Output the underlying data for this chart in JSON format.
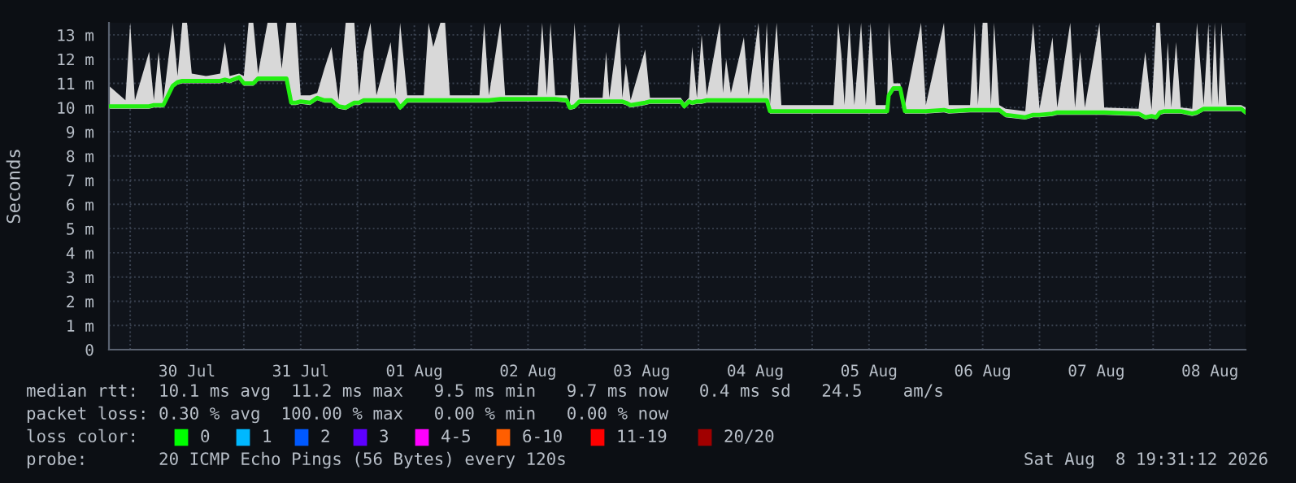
{
  "chart_data": {
    "type": "line",
    "ylabel": "Seconds",
    "xlim": [
      "2026-07-29T19:31",
      "2026-08-08T19:31"
    ],
    "xticks": [
      {
        "value": "2026-07-30T00:00",
        "label": null
      },
      {
        "value": "2026-07-30T12:00",
        "label": "30 Jul"
      },
      {
        "value": "2026-07-31T00:00",
        "label": null
      },
      {
        "value": "2026-07-31T12:00",
        "label": "31 Jul"
      },
      {
        "value": "2026-08-01T00:00",
        "label": null
      },
      {
        "value": "2026-08-01T12:00",
        "label": "01 Aug"
      },
      {
        "value": "2026-08-02T00:00",
        "label": null
      },
      {
        "value": "2026-08-02T12:00",
        "label": "02 Aug"
      },
      {
        "value": "2026-08-03T00:00",
        "label": null
      },
      {
        "value": "2026-08-03T12:00",
        "label": "03 Aug"
      },
      {
        "value": "2026-08-04T00:00",
        "label": null
      },
      {
        "value": "2026-08-04T12:00",
        "label": "04 Aug"
      },
      {
        "value": "2026-08-05T00:00",
        "label": null
      },
      {
        "value": "2026-08-05T12:00",
        "label": "05 Aug"
      },
      {
        "value": "2026-08-06T00:00",
        "label": null
      },
      {
        "value": "2026-08-06T12:00",
        "label": "06 Aug"
      },
      {
        "value": "2026-08-07T00:00",
        "label": null
      },
      {
        "value": "2026-08-07T12:00",
        "label": "07 Aug"
      },
      {
        "value": "2026-08-08T00:00",
        "label": null
      },
      {
        "value": "2026-08-08T12:00",
        "label": "08 Aug"
      }
    ],
    "ylim": [
      0,
      13.5
    ],
    "yticks": [
      0,
      {
        "value": 1,
        "label": "1 m"
      },
      {
        "value": 2,
        "label": "2 m"
      },
      {
        "value": 3,
        "label": "3 m"
      },
      {
        "value": 4,
        "label": "4 m"
      },
      {
        "value": 5,
        "label": "5 m"
      },
      {
        "value": 6,
        "label": "6 m"
      },
      {
        "value": 7,
        "label": "7 m"
      },
      {
        "value": 8,
        "label": "8 m"
      },
      {
        "value": 9,
        "label": "9 m"
      },
      {
        "value": 10,
        "label": "10 m"
      },
      {
        "value": 11,
        "label": "11 m"
      },
      {
        "value": 12,
        "label": "12 m"
      },
      {
        "value": 13,
        "label": "13 m"
      }
    ],
    "grid": true,
    "legend": false,
    "line_style": "solid",
    "marker": "none",
    "series": [
      {
        "color": "#22ee11",
        "x": [
          "2026-07-29T19:31",
          "2026-07-29T23:00",
          "2026-07-30T00:00",
          "2026-07-30T01:00",
          "2026-07-30T04:00",
          "2026-07-30T05:00",
          "2026-07-30T06:00",
          "2026-07-30T07:00",
          "2026-07-30T09:00",
          "2026-07-30T10:00",
          "2026-07-30T11:00",
          "2026-07-30T12:00",
          "2026-07-30T13:00",
          "2026-07-30T16:00",
          "2026-07-30T19:00",
          "2026-07-30T20:00",
          "2026-07-30T21:00",
          "2026-07-30T23:00",
          "2026-07-31T00:00",
          "2026-07-31T01:00",
          "2026-07-31T02:00",
          "2026-07-31T03:00",
          "2026-07-31T05:00",
          "2026-07-31T06:00",
          "2026-07-31T07:00",
          "2026-07-31T08:00",
          "2026-07-31T09:00",
          "2026-07-31T10:00",
          "2026-07-31T11:00",
          "2026-07-31T12:00",
          "2026-07-31T14:00",
          "2026-07-31T15:30",
          "2026-07-31T17:00",
          "2026-07-31T18:30",
          "2026-07-31T20:00",
          "2026-07-31T21:30",
          "2026-07-31T23:20",
          "2026-08-01T00:20",
          "2026-08-01T01:20",
          "2026-08-01T02:45",
          "2026-08-01T04:00",
          "2026-08-01T07:00",
          "2026-08-01T08:00",
          "2026-08-01T09:00",
          "2026-08-01T10:30",
          "2026-08-01T14:00",
          "2026-08-01T15:00",
          "2026-08-01T16:00",
          "2026-08-01T17:30",
          "2026-08-01T18:30",
          "2026-08-01T19:30",
          "2026-08-02T01:45",
          "2026-08-02T02:45",
          "2026-08-02T03:45",
          "2026-08-02T06:10",
          "2026-08-02T07:10",
          "2026-08-02T14:00",
          "2026-08-02T15:00",
          "2026-08-02T16:00",
          "2026-08-02T16:45",
          "2026-08-02T17:45",
          "2026-08-02T20:10",
          "2026-08-02T20:50",
          "2026-08-02T21:50",
          "2026-08-02T22:50",
          "2026-08-03T03:45",
          "2026-08-03T04:30",
          "2026-08-03T05:10",
          "2026-08-03T07:15",
          "2026-08-03T07:55",
          "2026-08-03T08:40",
          "2026-08-03T09:40",
          "2026-08-03T12:45",
          "2026-08-03T13:45",
          "2026-08-03T20:15",
          "2026-08-03T21:00",
          "2026-08-03T22:00",
          "2026-08-03T22:40",
          "2026-08-03T23:40",
          "2026-08-04T00:40",
          "2026-08-04T01:45",
          "2026-08-04T04:30",
          "2026-08-04T05:10",
          "2026-08-04T05:50",
          "2026-08-04T06:50",
          "2026-08-04T09:35",
          "2026-08-04T10:35",
          "2026-08-04T12:40",
          "2026-08-04T13:40",
          "2026-08-04T14:25",
          "2026-08-04T15:05",
          "2026-08-04T16:30",
          "2026-08-04T17:30",
          "2026-08-04T23:40",
          "2026-08-05T04:30",
          "2026-08-05T05:30",
          "2026-08-05T06:10",
          "2026-08-05T06:50",
          "2026-08-05T07:50",
          "2026-08-05T08:55",
          "2026-08-05T10:20",
          "2026-08-05T11:20",
          "2026-08-05T12:20",
          "2026-08-05T13:25",
          "2026-08-05T15:50",
          "2026-08-05T16:10",
          "2026-08-05T17:10",
          "2026-08-05T18:35",
          "2026-08-05T19:35",
          "2026-08-05T23:00",
          "2026-08-06T00:00",
          "2026-08-06T03:50",
          "2026-08-06T04:50",
          "2026-08-06T09:20",
          "2026-08-06T10:20",
          "2026-08-06T11:00",
          "2026-08-06T12:00",
          "2026-08-06T13:00",
          "2026-08-06T13:45",
          "2026-08-06T14:25",
          "2026-08-06T15:30",
          "2026-08-06T16:50",
          "2026-08-06T21:00",
          "2026-08-06T22:40",
          "2026-08-07T00:00",
          "2026-08-07T02:45",
          "2026-08-07T03:45",
          "2026-08-07T06:30",
          "2026-08-07T07:30",
          "2026-08-07T08:35",
          "2026-08-07T09:35",
          "2026-08-07T12:40",
          "2026-08-07T13:40",
          "2026-08-07T20:55",
          "2026-08-07T22:20",
          "2026-08-07T23:40",
          "2026-08-08T00:40",
          "2026-08-08T01:25",
          "2026-08-08T02:25",
          "2026-08-08T03:05",
          "2026-08-08T03:50",
          "2026-08-08T04:50",
          "2026-08-08T05:50",
          "2026-08-08T08:15",
          "2026-08-08T09:15",
          "2026-08-08T10:40",
          "2026-08-08T11:40",
          "2026-08-08T12:20",
          "2026-08-08T13:00",
          "2026-08-08T13:45",
          "2026-08-08T14:25",
          "2026-08-08T15:30",
          "2026-08-08T18:35",
          "2026-08-08T19:31"
        ],
        "values": [
          10.05,
          10.05,
          10.05,
          10.05,
          10.05,
          10.1,
          10.1,
          10.1,
          10.9,
          11.05,
          11.1,
          11.1,
          11.1,
          11.1,
          11.1,
          11.15,
          11.1,
          11.25,
          11.0,
          11.0,
          11.0,
          11.2,
          11.2,
          11.2,
          11.2,
          11.2,
          11.2,
          10.2,
          10.2,
          10.25,
          10.2,
          10.4,
          10.3,
          10.3,
          10.05,
          10.0,
          10.2,
          10.2,
          10.3,
          10.3,
          10.3,
          10.3,
          10.3,
          10.0,
          10.3,
          10.3,
          10.3,
          10.3,
          10.3,
          10.3,
          10.3,
          10.3,
          10.3,
          10.3,
          10.35,
          10.35,
          10.35,
          10.35,
          10.35,
          10.35,
          10.35,
          10.3,
          10.0,
          10.05,
          10.25,
          10.25,
          10.25,
          10.25,
          10.25,
          10.25,
          10.2,
          10.1,
          10.2,
          10.25,
          10.25,
          10.05,
          10.25,
          10.2,
          10.25,
          10.25,
          10.3,
          10.3,
          10.3,
          10.3,
          10.3,
          10.3,
          10.3,
          10.3,
          10.3,
          10.3,
          9.85,
          9.85,
          9.85,
          9.85,
          9.85,
          9.85,
          9.85,
          9.85,
          9.85,
          9.85,
          9.85,
          9.85,
          9.85,
          9.85,
          9.85,
          10.5,
          10.8,
          10.8,
          9.85,
          9.85,
          9.85,
          9.9,
          9.85,
          9.9,
          9.9,
          9.9,
          9.9,
          9.9,
          9.9,
          9.9,
          9.9,
          9.7,
          9.6,
          9.7,
          9.7,
          9.75,
          9.8,
          9.8,
          9.8,
          9.8,
          9.8,
          9.8,
          9.8,
          9.75,
          9.6,
          9.65,
          9.6,
          9.8,
          9.85,
          9.85,
          9.85,
          9.85,
          9.85,
          9.75,
          9.8,
          9.95,
          9.95,
          9.95,
          9.95,
          9.95,
          9.95,
          9.95,
          9.95,
          9.8
        ],
        "lower": [
          9.95,
          9.95,
          9.95,
          9.95,
          9.95,
          10.0,
          10.0,
          10.0,
          10.8,
          10.95,
          11.0,
          11.0,
          11.0,
          11.0,
          11.0,
          11.05,
          11.0,
          11.15,
          10.9,
          10.9,
          10.9,
          11.1,
          11.1,
          11.1,
          11.1,
          11.1,
          11.1,
          10.1,
          10.1,
          10.15,
          10.1,
          10.3,
          10.2,
          10.2,
          9.95,
          9.9,
          10.1,
          10.1,
          10.2,
          10.2,
          10.2,
          10.2,
          10.2,
          9.9,
          10.2,
          10.2,
          10.2,
          10.2,
          10.2,
          10.2,
          10.2,
          10.2,
          10.2,
          10.2,
          10.25,
          10.25,
          10.25,
          10.25,
          10.25,
          10.25,
          10.25,
          10.2,
          9.9,
          9.95,
          10.15,
          10.15,
          10.15,
          10.15,
          10.15,
          10.15,
          10.1,
          10.0,
          10.1,
          10.15,
          10.15,
          9.95,
          10.15,
          10.1,
          10.15,
          10.15,
          10.2,
          10.2,
          10.2,
          10.2,
          10.2,
          10.2,
          10.2,
          10.2,
          10.2,
          10.2,
          9.75,
          9.75,
          9.75,
          9.75,
          9.75,
          9.75,
          9.75,
          9.75,
          9.75,
          9.75,
          9.75,
          9.75,
          9.75,
          9.75,
          9.75,
          10.4,
          10.7,
          10.7,
          9.75,
          9.75,
          9.75,
          9.8,
          9.75,
          9.8,
          9.8,
          9.8,
          9.8,
          9.8,
          9.8,
          9.8,
          9.8,
          9.6,
          9.5,
          9.6,
          9.6,
          9.65,
          9.7,
          9.7,
          9.7,
          9.7,
          9.7,
          9.7,
          9.7,
          9.65,
          9.5,
          9.55,
          9.5,
          9.7,
          9.75,
          9.75,
          9.75,
          9.75,
          9.75,
          9.65,
          9.7,
          9.85,
          9.85,
          9.85,
          9.85,
          9.85,
          9.85,
          9.85,
          9.85,
          9.7
        ],
        "upper": [
          10.9,
          10.3,
          13.5,
          10.3,
          12.3,
          10.3,
          12.3,
          10.3,
          13.5,
          11.3,
          13.5,
          13.5,
          11.4,
          11.3,
          11.4,
          12.7,
          11.3,
          11.4,
          11.3,
          13.5,
          13.5,
          11.4,
          13.5,
          13.5,
          13.5,
          11.6,
          13.5,
          13.5,
          13.5,
          10.5,
          10.5,
          10.6,
          11.6,
          12.5,
          10.3,
          13.5,
          13.5,
          10.5,
          12.3,
          13.5,
          10.5,
          12.7,
          10.5,
          13.5,
          10.5,
          10.5,
          13.5,
          12.5,
          13.5,
          13.5,
          10.5,
          10.5,
          13.5,
          10.5,
          13.5,
          10.5,
          10.5,
          13.5,
          10.5,
          13.5,
          10.5,
          10.5,
          10.2,
          13.5,
          10.4,
          10.4,
          12.3,
          10.4,
          13.5,
          10.4,
          11.8,
          10.3,
          12.4,
          10.4,
          10.4,
          10.2,
          10.4,
          12.5,
          10.4,
          13.0,
          10.5,
          13.5,
          10.6,
          12.0,
          10.6,
          12.9,
          10.5,
          13.5,
          10.5,
          13.5,
          10.1,
          13.5,
          10.1,
          10.1,
          10.1,
          13.5,
          12.2,
          10.1,
          13.5,
          10.1,
          13.5,
          10.1,
          13.5,
          10.1,
          10.1,
          13.5,
          11.0,
          11.0,
          10.1,
          13.5,
          10.1,
          13.5,
          10.1,
          10.1,
          13.5,
          10.1,
          13.5,
          13.5,
          10.1,
          13.5,
          10.1,
          9.95,
          9.85,
          13.5,
          9.95,
          12.9,
          10.0,
          13.5,
          10.0,
          12.3,
          10.0,
          13.5,
          10.0,
          9.95,
          12.3,
          9.9,
          13.5,
          13.5,
          10.0,
          12.7,
          10.0,
          12.7,
          10.0,
          9.95,
          13.5,
          10.1,
          13.5,
          10.1,
          13.5,
          10.1,
          13.5,
          10.1,
          10.1,
          10.0
        ]
      }
    ],
    "annotations": [
      "median rtt:  10.1 ms avg  11.2 ms max   9.5 ms min   9.7 ms now   0.4 ms sd   24.5    am/s",
      "packet loss: 0.30 % avg  100.00 % max   0.00 % min   0.00 % now",
      "loss color:",
      "0",
      "1",
      "2",
      "3",
      "4-5",
      "6-10",
      "11-19",
      "20/20",
      "probe:       20 ICMP Echo Pings (56 Bytes) every 120s",
      "Sat Aug  8 19:31:12 2026"
    ]
  }
}
